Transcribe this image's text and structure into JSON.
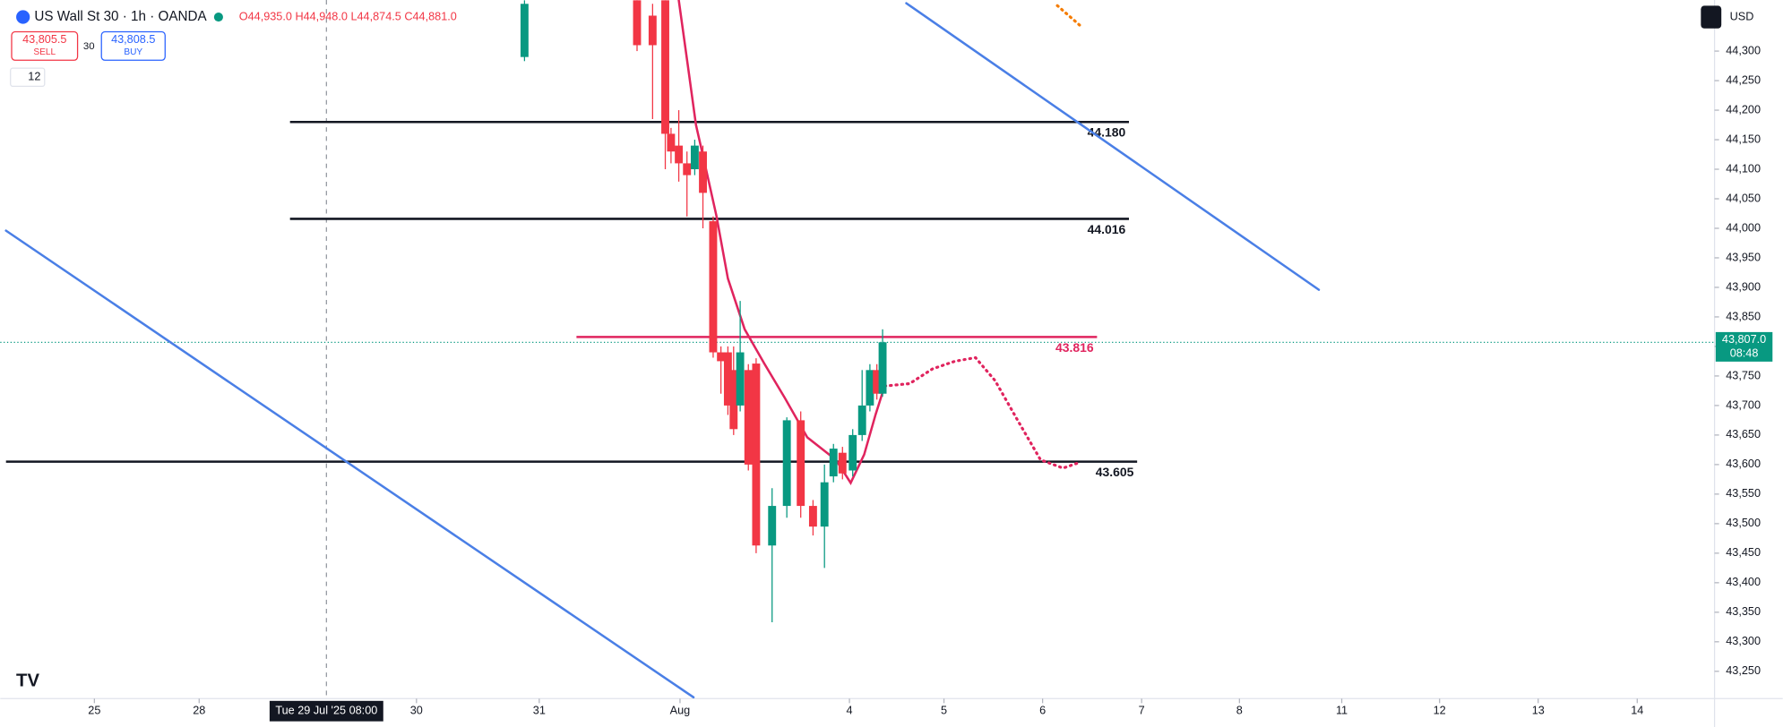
{
  "header": {
    "symbol": "US Wall St 30 · 1h · OANDA",
    "ohlc": "O44,935.0 H44,948.0 L44,874.5 C44,881.0",
    "sell_price": "43,805.5",
    "sell": "SELL",
    "spread": "30",
    "buy_price": "43,808.5",
    "buy": "BUY",
    "indicator_count": "12",
    "currency": "USD"
  },
  "chart_data": {
    "type": "candlestick",
    "xlim": [
      0,
      420
    ],
    "ylim": [
      43203.8,
      44386.5
    ],
    "xticks": [
      {
        "value": 23,
        "label": "25"
      },
      {
        "value": 48.6,
        "label": "28"
      },
      {
        "value": 101.7,
        "label": "30"
      },
      {
        "value": 131.7,
        "label": "31"
      },
      {
        "value": 166.1,
        "label": "Aug"
      },
      {
        "value": 207.5,
        "label": "4"
      },
      {
        "value": 230.6,
        "label": "5"
      },
      {
        "value": 254.7,
        "label": "6"
      },
      {
        "value": 278.9,
        "label": "7"
      },
      {
        "value": 302.8,
        "label": "8"
      },
      {
        "value": 327.8,
        "label": "11"
      },
      {
        "value": 351.7,
        "label": "12"
      },
      {
        "value": 375.8,
        "label": "13"
      },
      {
        "value": 400,
        "label": "14"
      }
    ],
    "crosshair": {
      "value": 79.7,
      "label": "Tue 29 Jul '25 08:00"
    },
    "yticks": [
      {
        "value": 44300,
        "label": "44,300"
      },
      {
        "value": 44250,
        "label": "44,250"
      },
      {
        "value": 44200,
        "label": "44,200"
      },
      {
        "value": 44150,
        "label": "44,150"
      },
      {
        "value": 44100,
        "label": "44,100"
      },
      {
        "value": 44050,
        "label": "44,050"
      },
      {
        "value": 44000,
        "label": "44,000"
      },
      {
        "value": 43950,
        "label": "43,950"
      },
      {
        "value": 43900,
        "label": "43,900"
      },
      {
        "value": 43850,
        "label": "43,850"
      },
      {
        "value": 43800,
        "label": "43,800"
      },
      {
        "value": 43750,
        "label": "43,750"
      },
      {
        "value": 43700,
        "label": "43,700"
      },
      {
        "value": 43650,
        "label": "43,650"
      },
      {
        "value": 43600,
        "label": "43,600"
      },
      {
        "value": 43550,
        "label": "43,550"
      },
      {
        "value": 43500,
        "label": "43,500"
      },
      {
        "value": 43450,
        "label": "43,450"
      },
      {
        "value": 43400,
        "label": "43,400"
      },
      {
        "value": 43350,
        "label": "43,350"
      },
      {
        "value": 43300,
        "label": "43,300"
      },
      {
        "value": 43250,
        "label": "43,250"
      }
    ],
    "up_color": "#089981",
    "down_color": "#f23645",
    "candles": {
      "x": [
        128.1,
        155.6,
        159.4,
        162.5,
        163.9,
        165.8,
        167.8,
        169.7,
        171.7,
        174.2,
        176.1,
        177.8,
        179.2,
        180.8,
        182.8,
        184.7,
        188.6,
        192.2,
        195.6,
        198.6,
        201.4,
        203.6,
        205.8,
        208.3,
        210.6,
        212.5,
        214.2,
        215.6
      ],
      "open": [
        44290,
        44386,
        44360,
        44386,
        44160,
        44140,
        44110,
        44100,
        44130,
        44012,
        43790,
        43790,
        43760,
        43700,
        43760,
        43771,
        43463,
        43530,
        43675,
        43530,
        43495,
        43580,
        43620,
        43590,
        43650,
        43700,
        43760,
        43720
      ],
      "high": [
        44386,
        44386,
        44380,
        44386,
        44170,
        44200,
        44130,
        44150,
        44140,
        44020,
        43800,
        43800,
        43800,
        43877,
        43770,
        43780,
        43560,
        43680,
        43690,
        43540,
        43600,
        43635,
        43630,
        43660,
        43760,
        43770,
        43770,
        43829
      ],
      "low": [
        44283,
        44300,
        44185,
        44100,
        44110,
        44079,
        44020,
        44090,
        44000,
        43781,
        43720,
        43684,
        43650,
        43690,
        43590,
        43450,
        43333,
        43510,
        43510,
        43480,
        43425,
        43570,
        43575,
        43580,
        43640,
        43690,
        43710,
        43715
      ],
      "close": [
        44380,
        44310,
        44310,
        44160,
        44130,
        44110,
        44090,
        44140,
        44060,
        43790,
        43775,
        43700,
        43660,
        43790,
        43600,
        43463,
        43530,
        43675,
        43530,
        43495,
        43570,
        43627,
        43585,
        43650,
        43700,
        43760,
        43720,
        43807
      ]
    },
    "series": [
      {
        "color": "#e0245e",
        "style": "solid",
        "x": [
          165.8,
          168.1,
          170,
          172.2,
          175,
          177.8,
          181.9,
          186.7,
          191.7,
          197.2,
          204.2,
          207.8,
          211.1,
          213.9,
          216.1
        ],
        "values": [
          44386,
          44271,
          44175,
          44108,
          44021,
          43915,
          43829,
          43771,
          43713,
          43646,
          43608,
          43569,
          43617,
          43685,
          43733
        ]
      },
      {
        "color": "#e0245e",
        "style": "dotted",
        "x": [
          216.1,
          222.2,
          227.8,
          233.3,
          238.3,
          243.1,
          248.6,
          254.2,
          259.7,
          263.9
        ],
        "values": [
          43733,
          43737,
          43762,
          43775,
          43781,
          43742,
          43675,
          43608,
          43594,
          43604
        ]
      },
      {
        "color": "#4a7fe6",
        "style": "solid",
        "x": [
          1.4,
          169.4
        ],
        "values": [
          43996,
          43206
        ]
      },
      {
        "color": "#4a7fe6",
        "style": "solid",
        "x": [
          221.4,
          322.2
        ],
        "values": [
          44381,
          43896
        ]
      },
      {
        "color": "#f57c00",
        "style": "dotted",
        "x": [
          258.3,
          264.4
        ],
        "values": [
          44377,
          44340
        ]
      }
    ],
    "levels": [
      {
        "value": 44180,
        "label": "44.180",
        "color": "#131722",
        "x": [
          70.8,
          275.8
        ]
      },
      {
        "value": 44016,
        "label": "44.016",
        "color": "#131722",
        "x": [
          70.8,
          275.8
        ]
      },
      {
        "value": 43816,
        "label": "43.816",
        "color": "#e0245e",
        "x": [
          140.8,
          268
        ]
      },
      {
        "value": 43605,
        "label": "43.605",
        "color": "#131722",
        "x": [
          1.4,
          277.8
        ]
      }
    ],
    "last_price": {
      "value": 43807,
      "label": "43,807.0",
      "countdown": "08:48",
      "color": "#089981"
    }
  }
}
